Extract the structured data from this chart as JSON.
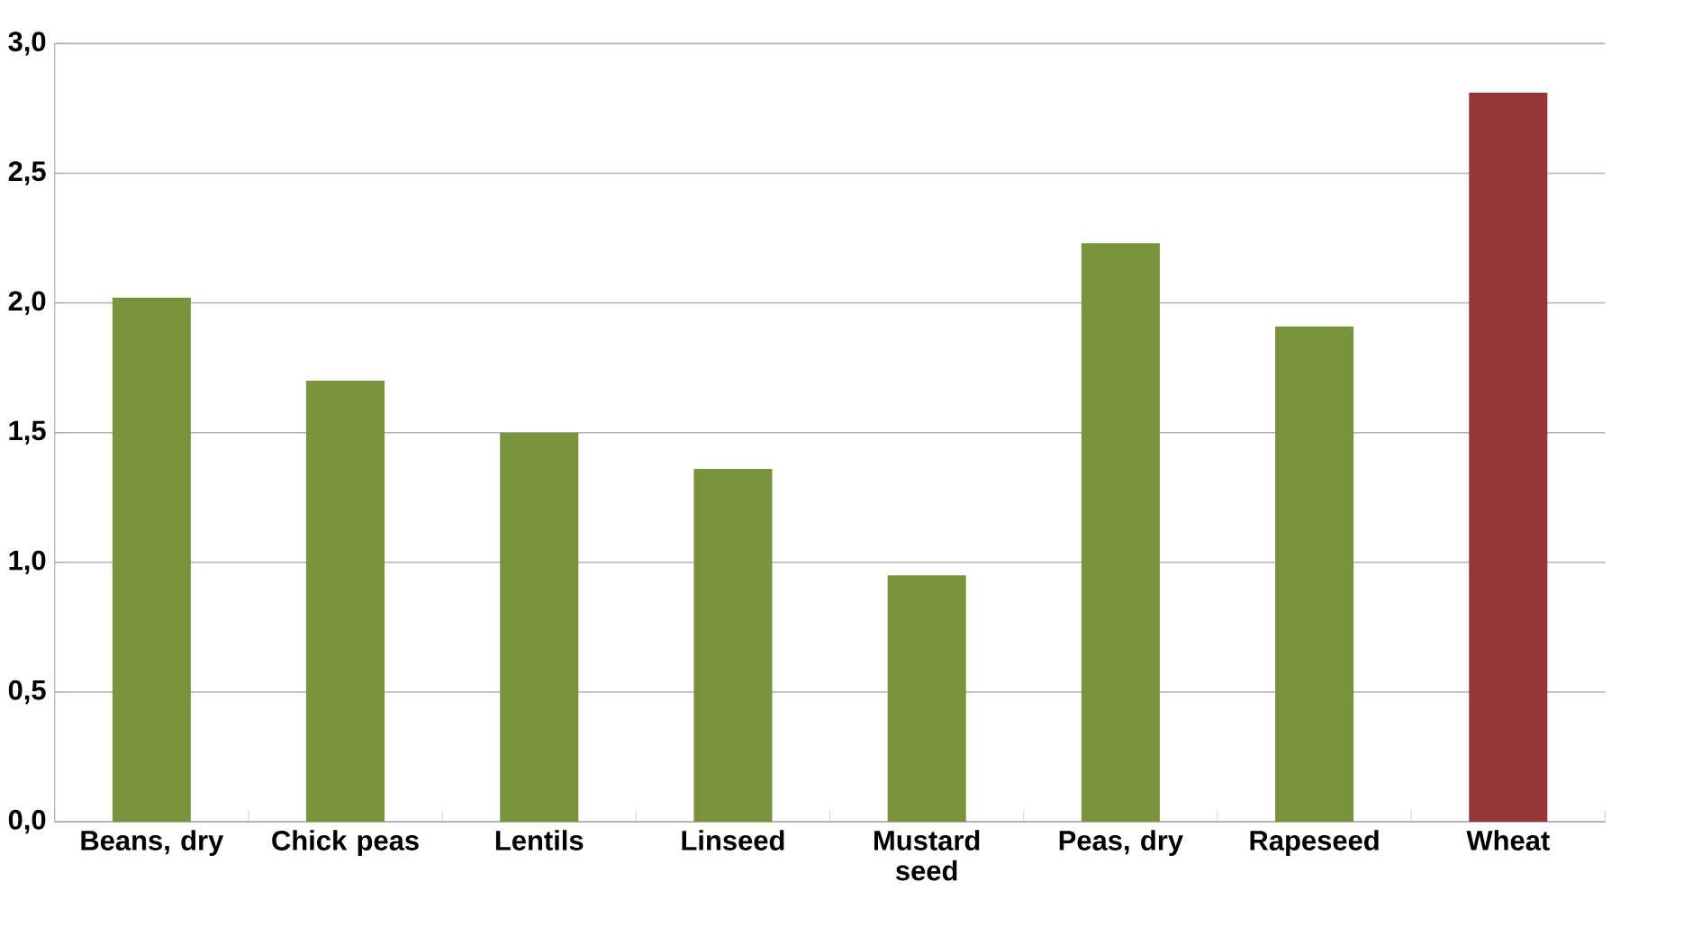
{
  "chart_data": {
    "type": "bar",
    "categories": [
      "Beans, dry",
      "Chick peas",
      "Lentils",
      "Linseed",
      "Mustard seed",
      "Peas, dry",
      "Rapeseed",
      "Wheat"
    ],
    "values": [
      2.02,
      1.7,
      1.5,
      1.36,
      0.95,
      2.23,
      1.91,
      2.81
    ],
    "colors": [
      "#77933c",
      "#77933c",
      "#77933c",
      "#77933c",
      "#77933c",
      "#77933c",
      "#77933c",
      "#953735"
    ],
    "ylim": [
      0,
      3
    ],
    "yticks": [
      {
        "value": 0,
        "label": "0,0"
      },
      {
        "value": 0.5,
        "label": "0,5"
      },
      {
        "value": 1,
        "label": "1,0"
      },
      {
        "value": 1.5,
        "label": "1,5"
      },
      {
        "value": 2,
        "label": "2,0"
      },
      {
        "value": 2.5,
        "label": "2,5"
      },
      {
        "value": 3,
        "label": "3,0"
      }
    ],
    "grid": "y"
  }
}
